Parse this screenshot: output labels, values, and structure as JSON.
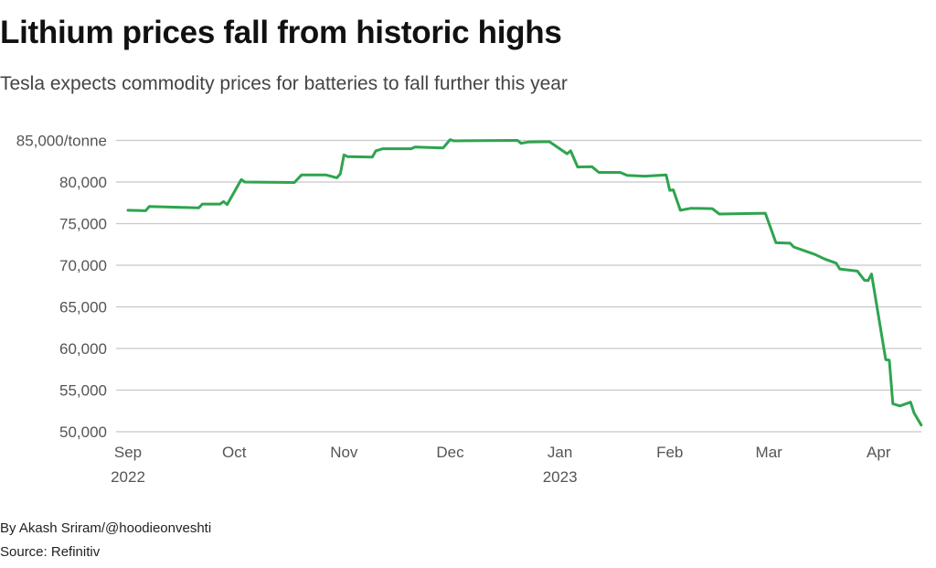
{
  "title": "Lithium prices fall from historic highs",
  "subtitle": "Tesla expects commodity prices for batteries to fall further this year",
  "byline": "By Akash Sriram/@hoodieonveshti",
  "source": "Source: Refinitiv",
  "chart_data": {
    "type": "line",
    "title": "Lithium prices fall from historic highs",
    "ylabel": "",
    "xlabel": "",
    "ylim": [
      50000,
      85000
    ],
    "yticks": [
      {
        "value": 85000,
        "label": "85,000/tonne"
      },
      {
        "value": 80000,
        "label": "80,000"
      },
      {
        "value": 75000,
        "label": "75,000"
      },
      {
        "value": 70000,
        "label": "70,000"
      },
      {
        "value": 65000,
        "label": "65,000"
      },
      {
        "value": 60000,
        "label": "60,000"
      },
      {
        "value": 55000,
        "label": "55,000"
      },
      {
        "value": 50000,
        "label": "50,000"
      }
    ],
    "xticks": [
      {
        "date": "2022-09-01",
        "label": "Sep",
        "sublabel": "2022"
      },
      {
        "date": "2022-10-01",
        "label": "Oct"
      },
      {
        "date": "2022-11-01",
        "label": "Nov"
      },
      {
        "date": "2022-12-01",
        "label": "Dec"
      },
      {
        "date": "2023-01-01",
        "label": "Jan",
        "sublabel": "2023"
      },
      {
        "date": "2023-02-01",
        "label": "Feb"
      },
      {
        "date": "2023-03-01",
        "label": "Mar"
      },
      {
        "date": "2023-04-01",
        "label": "Apr"
      }
    ],
    "grid": true,
    "color": "#2ea44f",
    "points": [
      [
        "2022-09-01",
        76600
      ],
      [
        "2022-09-06",
        76550
      ],
      [
        "2022-09-07",
        77050
      ],
      [
        "2022-09-21",
        76900
      ],
      [
        "2022-09-22",
        77350
      ],
      [
        "2022-09-27",
        77350
      ],
      [
        "2022-09-28",
        77650
      ],
      [
        "2022-09-29",
        77300
      ],
      [
        "2022-10-03",
        80300
      ],
      [
        "2022-10-04",
        80000
      ],
      [
        "2022-10-18",
        79950
      ],
      [
        "2022-10-20",
        80850
      ],
      [
        "2022-10-27",
        80850
      ],
      [
        "2022-10-30",
        80500
      ],
      [
        "2022-10-31",
        81000
      ],
      [
        "2022-11-01",
        83250
      ],
      [
        "2022-11-02",
        83050
      ],
      [
        "2022-11-09",
        83000
      ],
      [
        "2022-11-10",
        83750
      ],
      [
        "2022-11-12",
        84000
      ],
      [
        "2022-11-20",
        84000
      ],
      [
        "2022-11-21",
        84200
      ],
      [
        "2022-11-29",
        84100
      ],
      [
        "2022-12-01",
        85100
      ],
      [
        "2022-12-02",
        84950
      ],
      [
        "2022-12-20",
        85000
      ],
      [
        "2022-12-21",
        84650
      ],
      [
        "2022-12-23",
        84800
      ],
      [
        "2022-12-29",
        84850
      ],
      [
        "2023-01-03",
        83400
      ],
      [
        "2023-01-04",
        83750
      ],
      [
        "2023-01-06",
        81800
      ],
      [
        "2023-01-10",
        81850
      ],
      [
        "2023-01-12",
        81150
      ],
      [
        "2023-01-18",
        81150
      ],
      [
        "2023-01-20",
        80800
      ],
      [
        "2023-01-25",
        80700
      ],
      [
        "2023-01-31",
        80850
      ],
      [
        "2023-02-01",
        79000
      ],
      [
        "2023-02-02",
        79050
      ],
      [
        "2023-02-04",
        76600
      ],
      [
        "2023-02-07",
        76850
      ],
      [
        "2023-02-13",
        76800
      ],
      [
        "2023-02-15",
        76150
      ],
      [
        "2023-02-28",
        76250
      ],
      [
        "2023-03-03",
        72700
      ],
      [
        "2023-03-07",
        72650
      ],
      [
        "2023-03-08",
        72200
      ],
      [
        "2023-03-14",
        71300
      ],
      [
        "2023-03-17",
        70700
      ],
      [
        "2023-03-20",
        70250
      ],
      [
        "2023-03-21",
        69550
      ],
      [
        "2023-03-26",
        69300
      ],
      [
        "2023-03-28",
        68200
      ],
      [
        "2023-03-29",
        68150
      ],
      [
        "2023-03-30",
        68950
      ],
      [
        "2023-04-03",
        58650
      ],
      [
        "2023-04-04",
        58600
      ],
      [
        "2023-04-05",
        53350
      ],
      [
        "2023-04-07",
        53100
      ],
      [
        "2023-04-10",
        53550
      ],
      [
        "2023-04-11",
        52250
      ],
      [
        "2023-04-13",
        50800
      ]
    ]
  }
}
